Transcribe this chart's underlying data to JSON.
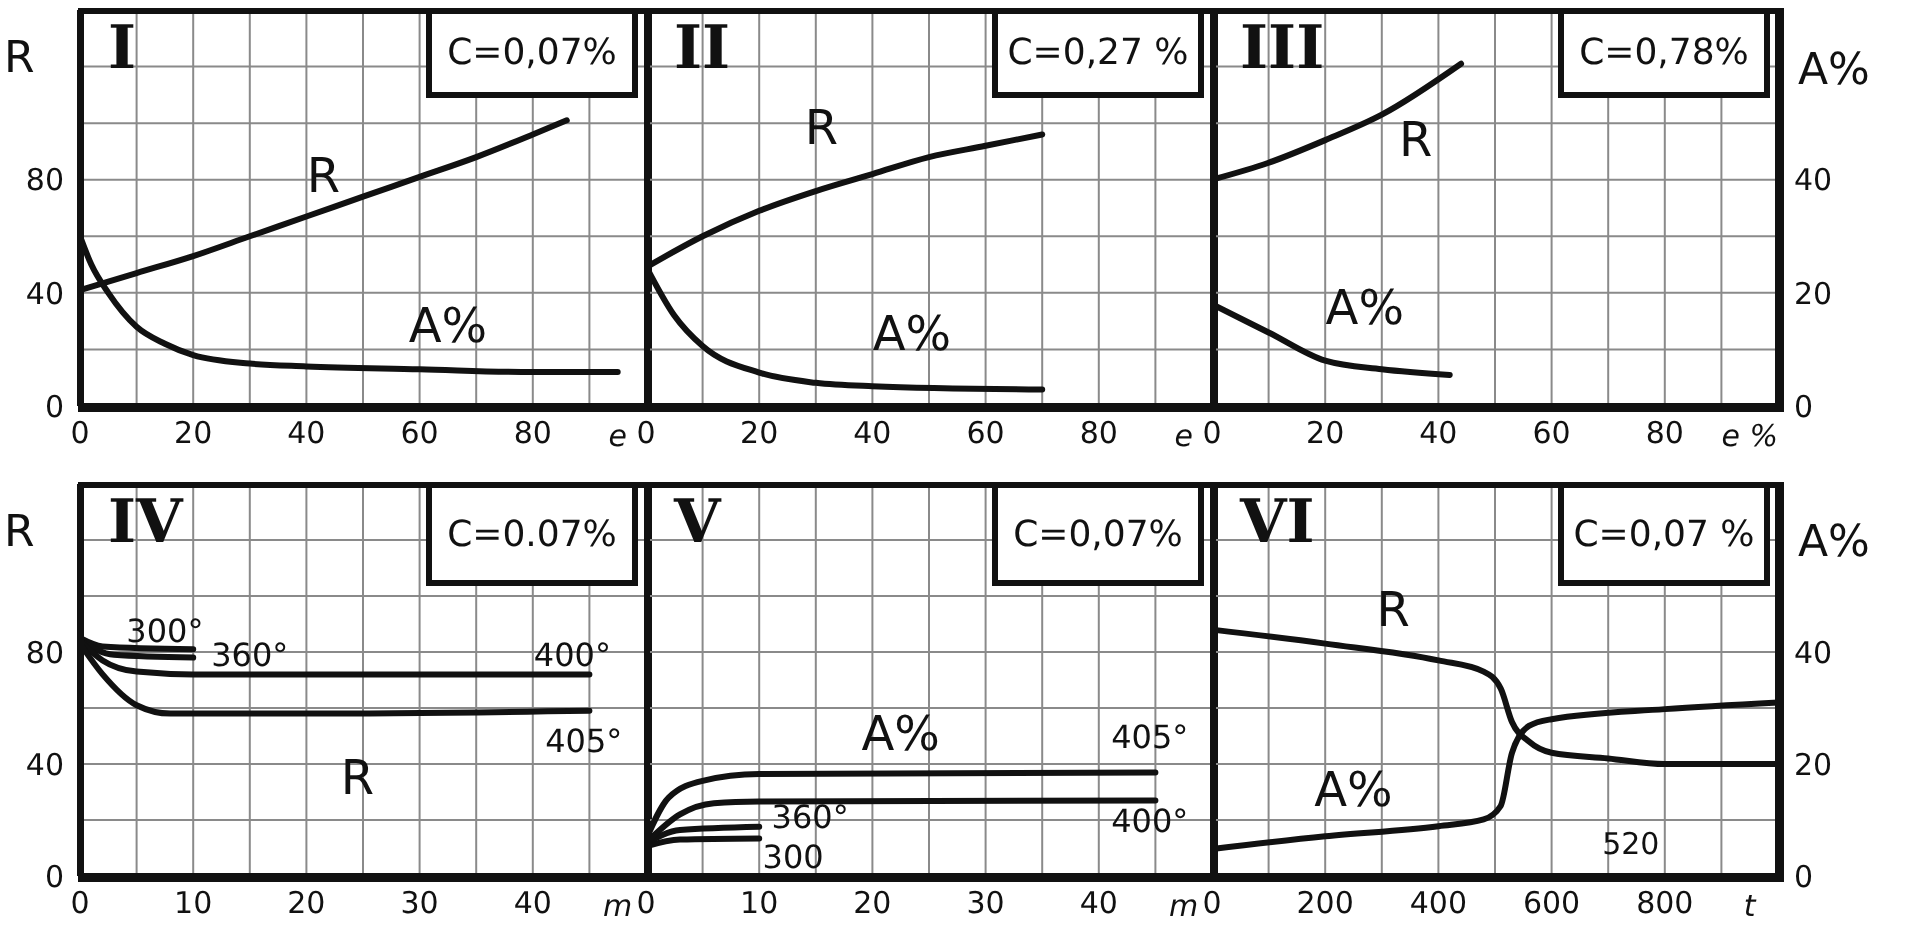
{
  "chart_data": [
    {
      "type": "line",
      "title": "I",
      "annotations": [
        "C=0,07%"
      ],
      "xlabel": "e",
      "ylabel": "R",
      "grid": true,
      "xlim": [
        0,
        100
      ],
      "xticks": [
        0,
        {
          "value": 10,
          "label": null
        },
        20,
        {
          "value": 30,
          "label": null
        },
        40,
        {
          "value": 50,
          "label": null
        },
        60,
        {
          "value": 70,
          "label": null
        },
        80,
        {
          "value": 90,
          "label": null
        }
      ],
      "ylim": [
        0,
        140
      ],
      "yticks": [
        0,
        {
          "value": 20,
          "label": null
        },
        40,
        {
          "value": 60,
          "label": null
        },
        80,
        {
          "value": 100,
          "label": null
        },
        {
          "value": 120,
          "label": null
        }
      ],
      "y2lim": [
        0,
        70
      ],
      "series": [
        {
          "name": "R",
          "color": "#111111",
          "axis": "y",
          "x": [
            0,
            10,
            20,
            30,
            40,
            50,
            60,
            70,
            80,
            86
          ],
          "values": [
            41,
            47,
            53,
            60,
            67,
            74,
            81,
            88,
            96,
            101
          ]
        },
        {
          "name": "A%",
          "color": "#111111",
          "axis": "y2",
          "x": [
            0,
            2,
            5,
            10,
            15,
            20,
            30,
            40,
            60,
            80,
            95
          ],
          "values": [
            30,
            25,
            20,
            14,
            11,
            9,
            7.5,
            7,
            6.5,
            6,
            6
          ]
        }
      ]
    },
    {
      "type": "line",
      "title": "II",
      "annotations": [
        "C=0,27 %"
      ],
      "xlabel": "e",
      "tick_labels": "x",
      "grid": true,
      "xlim": [
        0,
        100
      ],
      "xticks": [
        0,
        {
          "value": 10,
          "label": null
        },
        20,
        {
          "value": 30,
          "label": null
        },
        40,
        {
          "value": 50,
          "label": null
        },
        60,
        {
          "value": 70,
          "label": null
        },
        80,
        {
          "value": 90,
          "label": null
        }
      ],
      "ylim": [
        0,
        140
      ],
      "yticks": [
        0,
        {
          "value": 20,
          "label": null
        },
        40,
        {
          "value": 60,
          "label": null
        },
        80,
        {
          "value": 100,
          "label": null
        },
        {
          "value": 120,
          "label": null
        }
      ],
      "y2lim": [
        0,
        70
      ],
      "y2ticks": [
        0,
        {
          "value": 10,
          "label": null
        },
        20,
        {
          "value": 30,
          "label": null
        },
        40,
        {
          "value": 50,
          "label": null
        },
        {
          "value": 60,
          "label": null
        }
      ],
      "series": [
        {
          "name": "R",
          "color": "#111111",
          "axis": "y",
          "x": [
            0,
            10,
            20,
            30,
            40,
            50,
            60,
            70
          ],
          "values": [
            49,
            60,
            69,
            76,
            82,
            88,
            92,
            96
          ]
        },
        {
          "name": "A%",
          "color": "#111111",
          "axis": "y2",
          "x": [
            0,
            5,
            10,
            20,
            30,
            40,
            70
          ],
          "values": [
            24.7,
            16,
            10.6,
            5.9,
            4.1,
            3.5,
            2.9
          ]
        }
      ]
    },
    {
      "type": "line",
      "title": "III",
      "annotations": [
        "C=0,78%"
      ],
      "xlabel": "e %",
      "y2label": "A%",
      "grid": true,
      "xlim": [
        0,
        100
      ],
      "xticks": [
        0,
        {
          "value": 10,
          "label": null
        },
        20,
        {
          "value": 30,
          "label": null
        },
        40,
        {
          "value": 50,
          "label": null
        },
        60,
        {
          "value": 70,
          "label": null
        },
        80,
        {
          "value": 90,
          "label": null
        }
      ],
      "ylim": [
        0,
        140
      ],
      "y2lim": [
        0,
        70
      ],
      "y2ticks": [
        0,
        {
          "value": 10,
          "label": null
        },
        20,
        {
          "value": 30,
          "label": null
        },
        40,
        {
          "value": 50,
          "label": null
        },
        {
          "value": 60,
          "label": null
        }
      ],
      "series": [
        {
          "name": "R",
          "color": "#111111",
          "axis": "y",
          "x": [
            0,
            10,
            20,
            30,
            44
          ],
          "values": [
            80,
            86,
            94,
            103,
            121
          ]
        },
        {
          "name": "A%",
          "color": "#111111",
          "axis": "y2",
          "x": [
            0,
            10,
            20,
            30,
            42
          ],
          "values": [
            18,
            13,
            8,
            6.5,
            5.5
          ]
        }
      ]
    },
    {
      "type": "line",
      "title": "IV",
      "annotations": [
        "C=0.07%",
        "R"
      ],
      "xlabel": "m",
      "ylabel": "R",
      "grid": true,
      "xlim": [
        0,
        50
      ],
      "xticks": [
        0,
        {
          "value": 5,
          "label": null
        },
        10,
        {
          "value": 15,
          "label": null
        },
        20,
        {
          "value": 25,
          "label": null
        },
        30,
        {
          "value": 35,
          "label": null
        },
        40,
        {
          "value": 45,
          "label": null
        }
      ],
      "ylim": [
        0,
        140
      ],
      "yticks": [
        0,
        {
          "value": 20,
          "label": null
        },
        40,
        {
          "value": 60,
          "label": null
        },
        80,
        {
          "value": 100,
          "label": null
        },
        {
          "value": 120,
          "label": null
        }
      ],
      "series": [
        {
          "name": "300°",
          "color": "#111111",
          "axis": "y",
          "x": [
            0,
            2,
            10
          ],
          "values": [
            85,
            82,
            81
          ]
        },
        {
          "name": "360°",
          "color": "#111111",
          "axis": "y",
          "x": [
            0,
            3,
            10
          ],
          "values": [
            84,
            79,
            78
          ]
        },
        {
          "name": "400°",
          "color": "#111111",
          "axis": "y",
          "x": [
            0,
            2,
            5,
            10,
            45
          ],
          "values": [
            84,
            77,
            73,
            72,
            72
          ]
        },
        {
          "name": "405°",
          "color": "#111111",
          "axis": "y",
          "x": [
            0,
            2,
            5,
            8,
            20,
            45
          ],
          "values": [
            83,
            72,
            61,
            58,
            58,
            59
          ]
        }
      ]
    },
    {
      "type": "line",
      "title": "V",
      "annotations": [
        "C=0,07%",
        "A%"
      ],
      "xlabel": "m",
      "tick_labels": "x",
      "grid": true,
      "xlim": [
        0,
        50
      ],
      "xticks": [
        0,
        {
          "value": 5,
          "label": null
        },
        10,
        {
          "value": 15,
          "label": null
        },
        20,
        {
          "value": 25,
          "label": null
        },
        30,
        {
          "value": 35,
          "label": null
        },
        40,
        {
          "value": 45,
          "label": null
        }
      ],
      "y2lim": [
        0,
        70
      ],
      "y2ticks": [
        0,
        {
          "value": 10,
          "label": null
        },
        20,
        {
          "value": 30,
          "label": null
        },
        40,
        {
          "value": 50,
          "label": null
        },
        {
          "value": 60,
          "label": null
        }
      ],
      "series": [
        {
          "name": "300",
          "color": "#111111",
          "axis": "y2",
          "x": [
            0,
            3,
            10
          ],
          "values": [
            5.3,
            6.5,
            6.7
          ]
        },
        {
          "name": "360°",
          "color": "#111111",
          "axis": "y2",
          "x": [
            0,
            3,
            10
          ],
          "values": [
            5.9,
            8.2,
            8.8
          ]
        },
        {
          "name": "400°",
          "color": "#111111",
          "axis": "y2",
          "x": [
            0,
            3,
            6,
            10,
            45
          ],
          "values": [
            5.9,
            11,
            13,
            13.3,
            13.5
          ]
        },
        {
          "name": "405°",
          "color": "#111111",
          "axis": "y2",
          "x": [
            0,
            2,
            5,
            10,
            45
          ],
          "values": [
            6.5,
            14,
            17,
            18.2,
            18.5
          ]
        }
      ]
    },
    {
      "type": "line",
      "title": "VI",
      "annotations": [
        "C=0,07 %",
        "520"
      ],
      "xlabel": "t",
      "y2label": "A%",
      "grid": true,
      "xlim": [
        0,
        1000
      ],
      "xticks": [
        0,
        {
          "value": 100,
          "label": null
        },
        200,
        {
          "value": 300,
          "label": null
        },
        400,
        {
          "value": 500,
          "label": null
        },
        600,
        {
          "value": 700,
          "label": null
        },
        800,
        {
          "value": 900,
          "label": null
        }
      ],
      "ylim": [
        0,
        140
      ],
      "y2lim": [
        0,
        70
      ],
      "y2ticks": [
        0,
        {
          "value": 10,
          "label": null
        },
        20,
        {
          "value": 30,
          "label": null
        },
        40,
        {
          "value": 50,
          "label": null
        },
        {
          "value": 60,
          "label": null
        }
      ],
      "series": [
        {
          "name": "R",
          "color": "#111111",
          "axis": "y",
          "x": [
            0,
            200,
            400,
            480,
            510,
            530,
            560,
            600,
            700,
            800,
            1000
          ],
          "values": [
            88,
            83,
            77,
            73,
            67,
            55,
            48,
            44,
            42,
            40,
            40
          ]
        },
        {
          "name": "A%",
          "color": "#111111",
          "axis": "y2",
          "x": [
            0,
            200,
            400,
            480,
            510,
            530,
            560,
            600,
            800,
            1000
          ],
          "values": [
            4.8,
            7.1,
            8.9,
            10.1,
            12.5,
            22,
            26.8,
            28,
            29.8,
            31
          ]
        }
      ]
    }
  ]
}
